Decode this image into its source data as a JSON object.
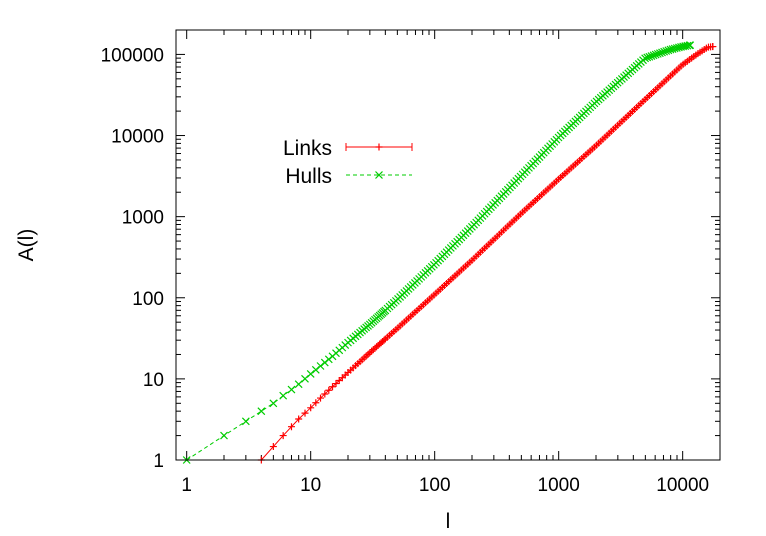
{
  "chart_data": {
    "type": "line",
    "xlabel": "l",
    "ylabel": "A(l)",
    "xscale": "log",
    "yscale": "log",
    "xlim": [
      0.82,
      20000
    ],
    "ylim": [
      1,
      200000
    ],
    "x_ticks": [
      "1",
      "10",
      "100",
      "1000",
      "10000"
    ],
    "y_ticks": [
      "1",
      "10",
      "100",
      "1000",
      "10000",
      "100000"
    ],
    "grid": false,
    "legend_position": "upper-left",
    "series": [
      {
        "name": "Links",
        "color": "#ff0000",
        "marker": "plus",
        "line_style": "solid",
        "x": [
          4,
          6,
          8,
          10,
          12,
          15,
          20,
          30,
          50,
          100,
          200,
          500,
          1000,
          2000,
          5000,
          10000,
          13000,
          16000,
          17500
        ],
        "y": [
          1,
          2,
          3.2,
          4.4,
          5.8,
          8,
          12,
          21,
          42,
          110,
          290,
          1100,
          2900,
          7500,
          28000,
          75000,
          100000,
          123000,
          125000
        ]
      },
      {
        "name": "Hulls",
        "color": "#00cc00",
        "marker": "cross",
        "line_style": "dashed",
        "x": [
          1,
          2,
          3,
          4,
          5,
          6,
          8,
          10,
          15,
          20,
          30,
          50,
          100,
          200,
          500,
          1000,
          2000,
          5000,
          8000,
          10000,
          11500
        ],
        "y": [
          1,
          2,
          3,
          4,
          5,
          6.2,
          8.6,
          11.5,
          19,
          28,
          47,
          95,
          260,
          750,
          3200,
          9500,
          26000,
          90000,
          115000,
          125000,
          130000
        ]
      }
    ]
  }
}
